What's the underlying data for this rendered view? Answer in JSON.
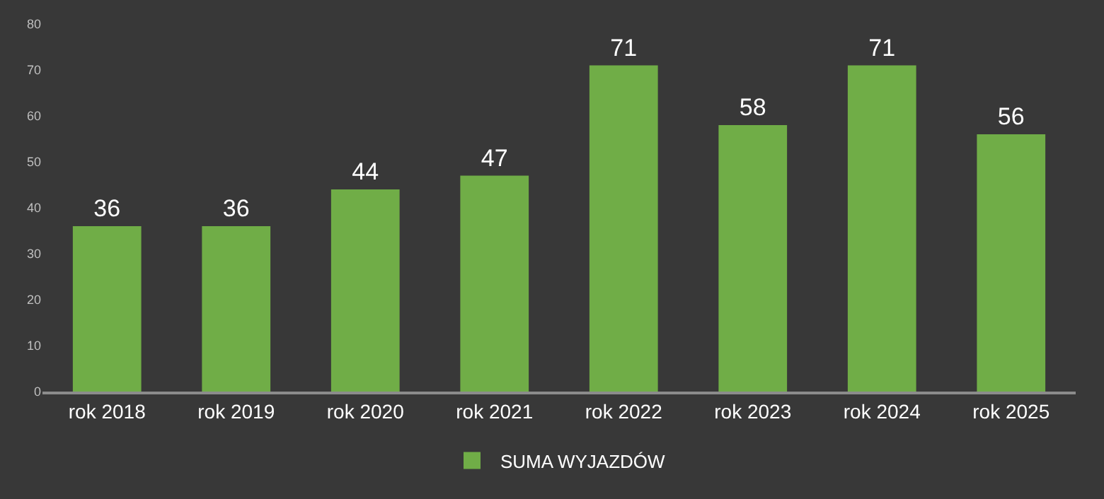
{
  "chart_data": {
    "type": "bar",
    "categories": [
      "rok 2018",
      "rok 2019",
      "rok 2020",
      "rok 2021",
      "rok 2022",
      "rok 2023",
      "rok 2024",
      "rok 2025"
    ],
    "series": [
      {
        "name": "SUMA WYJAZDÓW",
        "color": "#70ad47",
        "values": [
          36,
          36,
          44,
          47,
          71,
          58,
          71,
          56
        ]
      }
    ],
    "ylim": [
      0,
      80
    ],
    "yticks": [
      0,
      10,
      20,
      30,
      40,
      50,
      60,
      70,
      80
    ],
    "data_labels": true,
    "grid": false,
    "legend": "bottom"
  }
}
